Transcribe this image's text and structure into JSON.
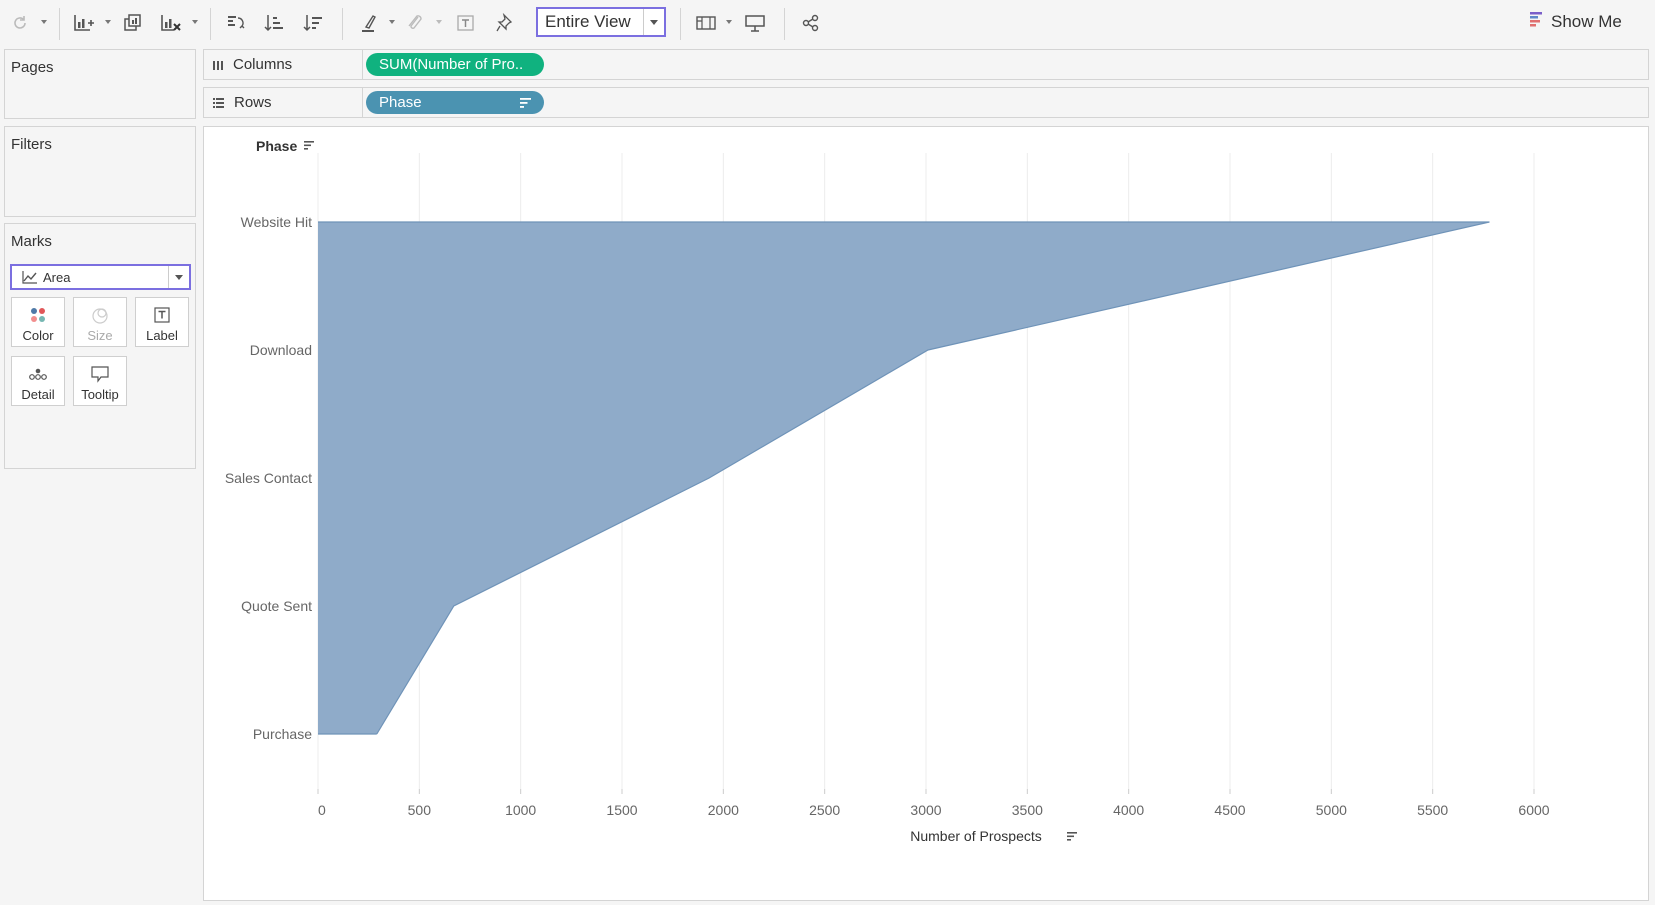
{
  "toolbar": {
    "fit_select": {
      "value": "Entire View"
    },
    "show_me_label": "Show Me",
    "icons": [
      "refresh-icon",
      "new-worksheet-icon",
      "duplicate-sheet-icon",
      "clear-sheet-icon",
      "swap-axes-icon",
      "sort-ascending-icon",
      "sort-descending-icon",
      "highlight-icon",
      "group-members-icon",
      "show-labels-icon",
      "pin-icon",
      "show-cards-icon",
      "presentation-mode-icon",
      "share-icon"
    ]
  },
  "cards": {
    "pages_title": "Pages",
    "filters_title": "Filters",
    "marks_title": "Marks",
    "mark_type": "Area",
    "buttons": [
      {
        "label": "Color",
        "enabled": true
      },
      {
        "label": "Size",
        "enabled": false
      },
      {
        "label": "Label",
        "enabled": true
      },
      {
        "label": "Detail",
        "enabled": true
      },
      {
        "label": "Tooltip",
        "enabled": true
      }
    ]
  },
  "shelves": {
    "columns_label": "Columns",
    "columns_pill": "SUM(Number of Pro..",
    "columns_pill_color": "#10b27f",
    "rows_label": "Rows",
    "rows_pill": "Phase",
    "rows_pill_color": "#4b93b1"
  },
  "chart_data": {
    "type": "area",
    "orientation": "horizontal",
    "y_header": "Phase",
    "xlabel": "Number of Prospects",
    "categories": [
      "Website Hit",
      "Download",
      "Sales Contact",
      "Quote Sent",
      "Purchase"
    ],
    "values": [
      5780,
      3010,
      1930,
      670,
      290
    ],
    "xlim": [
      0,
      6000
    ],
    "xticks": [
      0,
      500,
      1000,
      1500,
      2000,
      2500,
      3000,
      3500,
      4000,
      4500,
      5000,
      5500,
      6000
    ],
    "fill_color": "#8fabc9",
    "line_color": "#6f93b8",
    "grid": "vertical"
  }
}
